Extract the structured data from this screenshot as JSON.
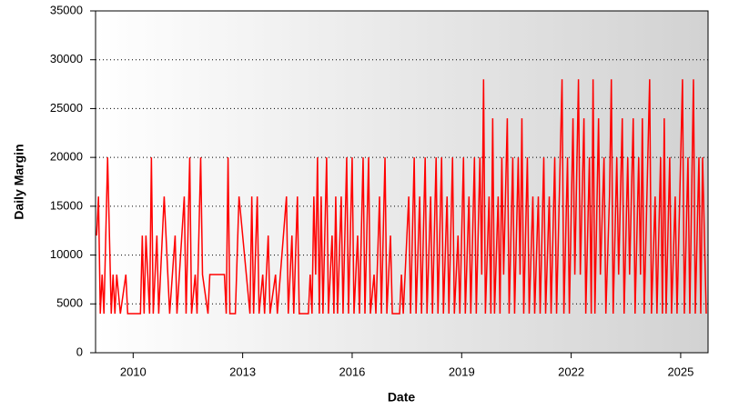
{
  "chart_data": {
    "type": "line",
    "xlabel": "Date",
    "ylabel": "Daily Margin",
    "color": "#ff0000",
    "grid": true,
    "xlim": [
      2008.97,
      2025.75
    ],
    "xticks": [
      2010,
      2013,
      2016,
      2019,
      2022,
      2025
    ],
    "ylim": [
      0,
      35000
    ],
    "yticks": [
      0,
      5000,
      10000,
      15000,
      20000,
      25000,
      30000,
      35000
    ],
    "x": [
      2009.0,
      2009.05,
      2009.1,
      2009.15,
      2009.2,
      2009.3,
      2009.35,
      2009.4,
      2009.45,
      2009.5,
      2009.55,
      2009.65,
      2009.8,
      2009.85,
      2010.2,
      2010.25,
      2010.3,
      2010.35,
      2010.45,
      2010.5,
      2010.55,
      2010.65,
      2010.7,
      2010.85,
      2011.0,
      2011.15,
      2011.2,
      2011.4,
      2011.45,
      2011.55,
      2011.6,
      2011.7,
      2011.75,
      2011.85,
      2011.9,
      2012.05,
      2012.1,
      2012.5,
      2012.55,
      2012.6,
      2012.65,
      2012.8,
      2012.9,
      2013.1,
      2013.2,
      2013.25,
      2013.3,
      2013.4,
      2013.45,
      2013.55,
      2013.6,
      2013.7,
      2013.75,
      2013.9,
      2013.95,
      2014.2,
      2014.25,
      2014.35,
      2014.4,
      2014.5,
      2014.55,
      2014.8,
      2014.85,
      2014.9,
      2014.95,
      2015.0,
      2015.05,
      2015.1,
      2015.15,
      2015.2,
      2015.3,
      2015.35,
      2015.45,
      2015.5,
      2015.55,
      2015.6,
      2015.7,
      2015.75,
      2015.85,
      2015.9,
      2016.0,
      2016.05,
      2016.15,
      2016.2,
      2016.3,
      2016.35,
      2016.45,
      2016.5,
      2016.6,
      2016.65,
      2016.75,
      2016.8,
      2016.9,
      2016.95,
      2017.05,
      2017.1,
      2017.3,
      2017.35,
      2017.4,
      2017.55,
      2017.6,
      2017.7,
      2017.75,
      2017.85,
      2017.9,
      2018.0,
      2018.05,
      2018.15,
      2018.2,
      2018.3,
      2018.35,
      2018.45,
      2018.5,
      2018.6,
      2018.65,
      2018.75,
      2018.8,
      2018.9,
      2018.95,
      2019.05,
      2019.1,
      2019.2,
      2019.25,
      2019.35,
      2019.4,
      2019.5,
      2019.55,
      2019.6,
      2019.65,
      2019.75,
      2019.8,
      2019.85,
      2019.9,
      2020.0,
      2020.05,
      2020.1,
      2020.15,
      2020.25,
      2020.3,
      2020.4,
      2020.45,
      2020.55,
      2020.6,
      2020.65,
      2020.7,
      2020.8,
      2020.85,
      2020.95,
      2021.0,
      2021.1,
      2021.15,
      2021.25,
      2021.3,
      2021.4,
      2021.45,
      2021.55,
      2021.6,
      2021.7,
      2021.75,
      2021.8,
      2021.9,
      2021.95,
      2022.05,
      2022.1,
      2022.2,
      2022.25,
      2022.35,
      2022.4,
      2022.5,
      2022.55,
      2022.6,
      2022.65,
      2022.75,
      2022.8,
      2022.9,
      2022.95,
      2023.05,
      2023.1,
      2023.15,
      2023.25,
      2023.3,
      2023.4,
      2023.45,
      2023.55,
      2023.6,
      2023.7,
      2023.75,
      2023.85,
      2023.9,
      2023.95,
      2024.0,
      2024.1,
      2024.15,
      2024.2,
      2024.3,
      2024.35,
      2024.45,
      2024.5,
      2024.55,
      2024.6,
      2024.7,
      2024.75,
      2024.85,
      2024.9,
      2025.0,
      2025.05,
      2025.1,
      2025.2,
      2025.25,
      2025.35,
      2025.4,
      2025.5,
      2025.55,
      2025.6,
      2025.7
    ],
    "values": [
      12000,
      16000,
      4000,
      8000,
      4000,
      20000,
      12000,
      4000,
      8000,
      4000,
      8000,
      4000,
      8000,
      4000,
      4000,
      12000,
      4000,
      12000,
      4000,
      20000,
      4000,
      12000,
      4000,
      16000,
      4000,
      12000,
      4000,
      16000,
      4000,
      20000,
      4000,
      8000,
      4000,
      20000,
      8000,
      4000,
      8000,
      8000,
      4000,
      20000,
      4000,
      4000,
      16000,
      8000,
      4000,
      16000,
      4000,
      16000,
      4000,
      8000,
      4000,
      12000,
      4000,
      8000,
      4000,
      16000,
      4000,
      12000,
      4000,
      16000,
      4000,
      4000,
      8000,
      4000,
      16000,
      8000,
      20000,
      4000,
      16000,
      4000,
      20000,
      4000,
      12000,
      4000,
      16000,
      4000,
      16000,
      4000,
      20000,
      4000,
      20000,
      4000,
      12000,
      4000,
      20000,
      4000,
      20000,
      4000,
      8000,
      4000,
      16000,
      4000,
      20000,
      4000,
      12000,
      4000,
      4000,
      8000,
      4000,
      16000,
      4000,
      20000,
      4000,
      16000,
      4000,
      20000,
      4000,
      16000,
      4000,
      20000,
      4000,
      20000,
      4000,
      16000,
      4000,
      20000,
      4000,
      12000,
      4000,
      20000,
      4000,
      16000,
      4000,
      20000,
      4000,
      20000,
      8000,
      28000,
      4000,
      16000,
      4000,
      24000,
      4000,
      16000,
      4000,
      20000,
      8000,
      24000,
      4000,
      20000,
      4000,
      20000,
      8000,
      24000,
      4000,
      20000,
      4000,
      16000,
      4000,
      16000,
      4000,
      20000,
      4000,
      16000,
      4000,
      20000,
      4000,
      20000,
      28000,
      4000,
      20000,
      4000,
      24000,
      8000,
      28000,
      8000,
      24000,
      4000,
      20000,
      4000,
      28000,
      4000,
      24000,
      8000,
      20000,
      4000,
      16000,
      28000,
      4000,
      20000,
      8000,
      24000,
      4000,
      20000,
      8000,
      24000,
      4000,
      20000,
      8000,
      24000,
      4000,
      20000,
      28000,
      4000,
      16000,
      4000,
      20000,
      4000,
      24000,
      4000,
      20000,
      4000,
      16000,
      4000,
      20000,
      28000,
      4000,
      20000,
      4000,
      28000,
      4000,
      20000,
      4000,
      20000,
      4000
    ]
  }
}
